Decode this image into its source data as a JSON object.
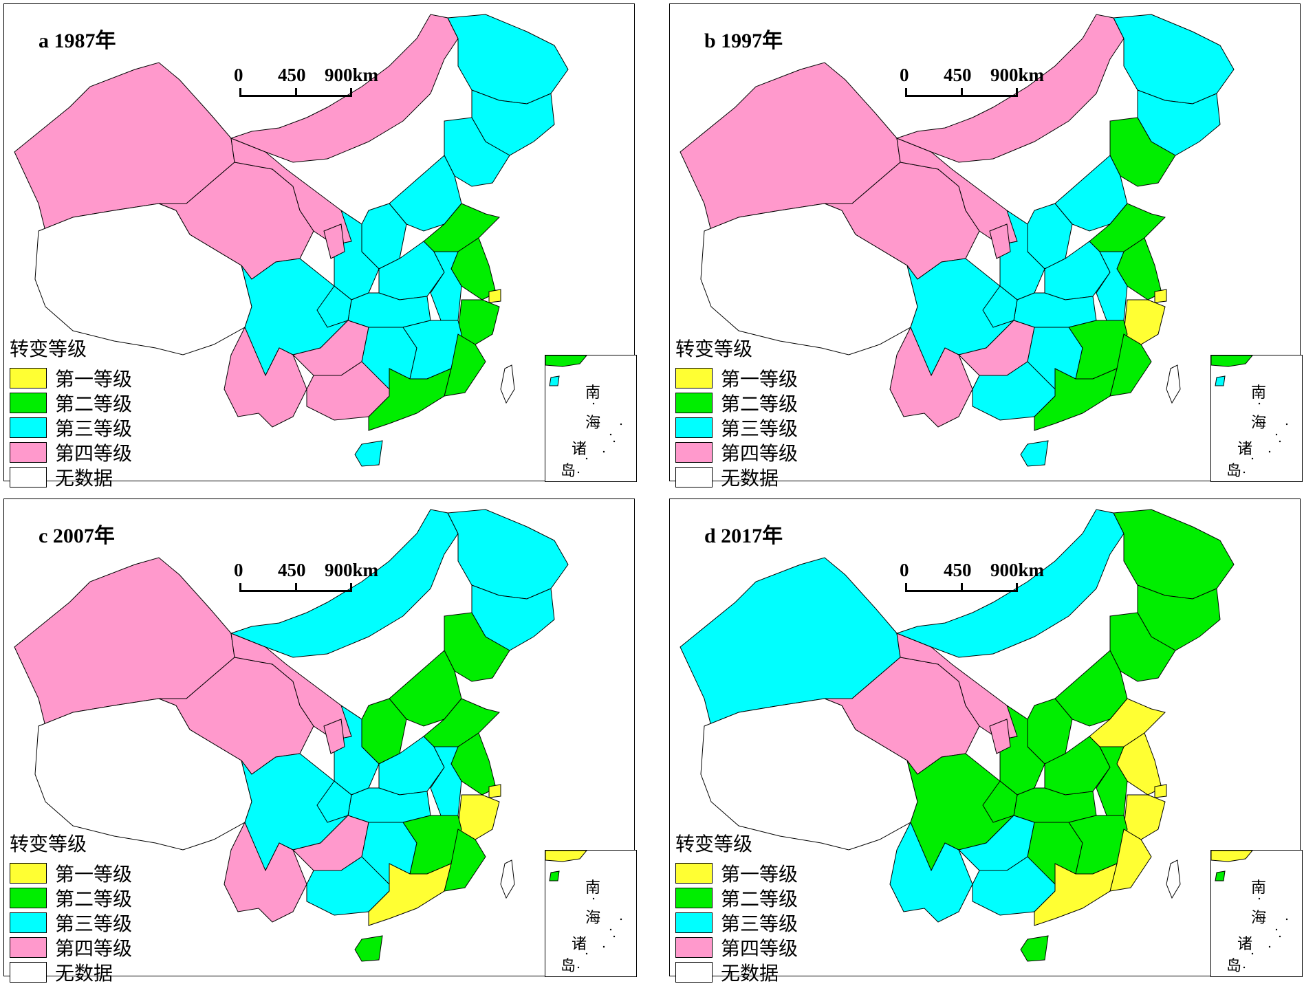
{
  "colors": {
    "level1": "#ffff33",
    "level2": "#00ee00",
    "level3": "#00ffff",
    "level4": "#ff99cc",
    "nodata": "#ffffff"
  },
  "scale_bar": {
    "labels": [
      "0",
      "450",
      "900km"
    ]
  },
  "legend": {
    "title": "转变等级",
    "items": [
      {
        "label": "第一等级",
        "key": "level1"
      },
      {
        "label": "第二等级",
        "key": "level2"
      },
      {
        "label": "第三等级",
        "key": "level3"
      },
      {
        "label": "第四等级",
        "key": "level4"
      },
      {
        "label": "无数据",
        "key": "nodata"
      }
    ]
  },
  "inset": {
    "chars": [
      "南",
      "海",
      "诸",
      "岛"
    ]
  },
  "panels": [
    {
      "title": "a  1987年",
      "regions": {
        "xinjiang": "level4",
        "xizang": "nodata",
        "qinghai": "level4",
        "gansu": "level4",
        "neimenggu": "level4",
        "heilongjiang": "level3",
        "jilin": "level3",
        "liaoning": "level3",
        "beijing": "level1",
        "hebei": "level3",
        "shanxi": "level3",
        "shaanxi": "level3",
        "ningxia": "level4",
        "shandong": "level2",
        "henan": "level3",
        "jiangsu": "level2",
        "shanghai": "level1",
        "zhejiang": "level2",
        "anhui": "level3",
        "hubei": "level3",
        "sichuan": "level3",
        "chongqing": "level3",
        "yunnan": "level4",
        "guizhou": "level4",
        "guangxi": "level4",
        "hunan": "level3",
        "jiangxi": "level3",
        "fujian": "level2",
        "guangdong": "level2",
        "hainan": "level3"
      }
    },
    {
      "title": "b  1997年",
      "regions": {
        "xinjiang": "level4",
        "xizang": "nodata",
        "qinghai": "level4",
        "gansu": "level4",
        "neimenggu": "level4",
        "heilongjiang": "level3",
        "jilin": "level3",
        "liaoning": "level2",
        "beijing": "level1",
        "hebei": "level3",
        "shanxi": "level3",
        "shaanxi": "level3",
        "ningxia": "level4",
        "shandong": "level2",
        "henan": "level3",
        "jiangsu": "level2",
        "shanghai": "level1",
        "zhejiang": "level1",
        "anhui": "level3",
        "hubei": "level3",
        "sichuan": "level3",
        "chongqing": "level3",
        "yunnan": "level4",
        "guizhou": "level4",
        "guangxi": "level3",
        "hunan": "level3",
        "jiangxi": "level2",
        "fujian": "level2",
        "guangdong": "level2",
        "hainan": "level3"
      }
    },
    {
      "title": "c  2007年",
      "regions": {
        "xinjiang": "level4",
        "xizang": "nodata",
        "qinghai": "level4",
        "gansu": "level4",
        "neimenggu": "level3",
        "heilongjiang": "level3",
        "jilin": "level3",
        "liaoning": "level2",
        "beijing": "level1",
        "hebei": "level2",
        "shanxi": "level2",
        "shaanxi": "level3",
        "ningxia": "level4",
        "shandong": "level2",
        "henan": "level3",
        "jiangsu": "level2",
        "shanghai": "level1",
        "zhejiang": "level1",
        "anhui": "level3",
        "hubei": "level3",
        "sichuan": "level3",
        "chongqing": "level3",
        "yunnan": "level4",
        "guizhou": "level4",
        "guangxi": "level3",
        "hunan": "level3",
        "jiangxi": "level2",
        "fujian": "level2",
        "guangdong": "level1",
        "hainan": "level2"
      }
    },
    {
      "title": "d  2017年",
      "regions": {
        "xinjiang": "level3",
        "xizang": "nodata",
        "qinghai": "level4",
        "gansu": "level4",
        "neimenggu": "level3",
        "heilongjiang": "level2",
        "jilin": "level2",
        "liaoning": "level2",
        "beijing": "level1",
        "hebei": "level2",
        "shanxi": "level2",
        "shaanxi": "level2",
        "ningxia": "level4",
        "shandong": "level1",
        "henan": "level2",
        "jiangsu": "level1",
        "shanghai": "level1",
        "zhejiang": "level1",
        "anhui": "level2",
        "hubei": "level2",
        "sichuan": "level2",
        "chongqing": "level2",
        "yunnan": "level3",
        "guizhou": "level3",
        "guangxi": "level3",
        "hunan": "level2",
        "jiangxi": "level2",
        "fujian": "level1",
        "guangdong": "level1",
        "hainan": "level2"
      }
    }
  ]
}
